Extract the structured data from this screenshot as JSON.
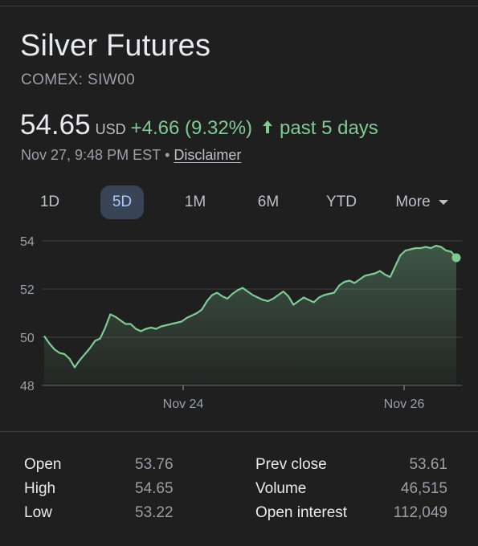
{
  "header": {
    "title": "Silver Futures",
    "ticker": "COMEX: SIW00"
  },
  "quote": {
    "price": "54.65",
    "currency": "USD",
    "change": "+4.66 (9.32%)",
    "period": "past 5 days",
    "timestamp": "Nov 27, 9:48 PM EST",
    "separator": "•",
    "disclaimer": "Disclaimer",
    "up_color": "#81c995"
  },
  "ranges": {
    "items": [
      "1D",
      "5D",
      "1M",
      "6M",
      "YTD"
    ],
    "active": "5D",
    "more_label": "More"
  },
  "chart_data": {
    "type": "area",
    "x_tick_labels": [
      "Nov 24",
      "Nov 26"
    ],
    "y_ticks": [
      48,
      50,
      52,
      54
    ],
    "ylim": [
      48,
      54.4
    ],
    "grid": true,
    "line_color": "#81c995",
    "last_value": 53.3,
    "series": [
      {
        "values": [
          50.05,
          49.75,
          49.5,
          49.35,
          49.3,
          49.1,
          48.75,
          49.05,
          49.3,
          49.55,
          49.85,
          49.95,
          50.4,
          50.95,
          50.85,
          50.7,
          50.55,
          50.55,
          50.35,
          50.25,
          50.35,
          50.4,
          50.35,
          50.45,
          50.5,
          50.55,
          50.6,
          50.65,
          50.8,
          50.9,
          51.0,
          51.15,
          51.5,
          51.75,
          51.85,
          51.7,
          51.6,
          51.8,
          51.95,
          52.05,
          51.9,
          51.75,
          51.65,
          51.55,
          51.5,
          51.6,
          51.75,
          51.9,
          51.7,
          51.35,
          51.5,
          51.65,
          51.55,
          51.45,
          51.65,
          51.75,
          51.8,
          51.85,
          52.15,
          52.3,
          52.35,
          52.25,
          52.4,
          52.55,
          52.6,
          52.65,
          52.75,
          52.6,
          52.5,
          52.95,
          53.4,
          53.6,
          53.65,
          53.7,
          53.7,
          53.75,
          53.7,
          53.8,
          53.75,
          53.6,
          53.55,
          53.3
        ]
      }
    ]
  },
  "stats": {
    "open_label": "Open",
    "open": "53.76",
    "high_label": "High",
    "high": "54.65",
    "low_label": "Low",
    "low": "53.22",
    "prev_close_label": "Prev close",
    "prev_close": "53.61",
    "volume_label": "Volume",
    "volume": "46,515",
    "open_interest_label": "Open interest",
    "open_interest": "112,049"
  }
}
